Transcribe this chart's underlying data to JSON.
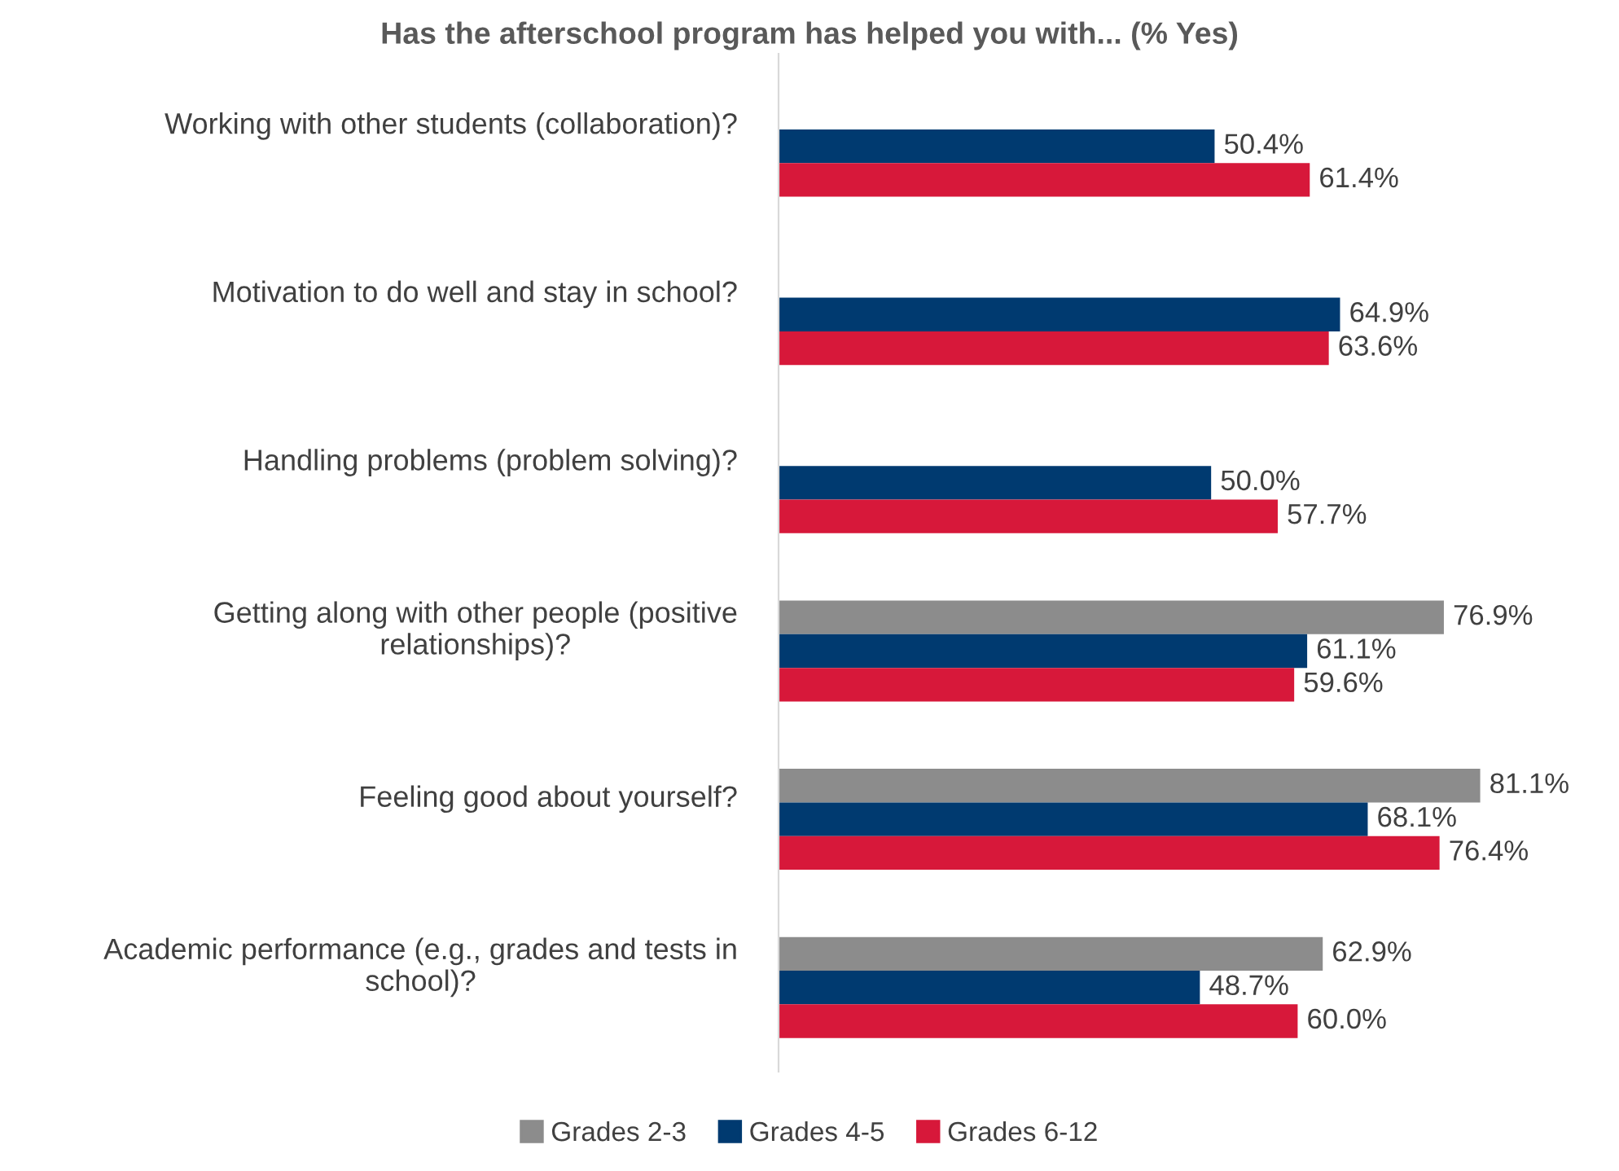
{
  "chart_data": {
    "type": "bar",
    "orientation": "horizontal",
    "title": "Has the afterschool program has helped you with... (% Yes)",
    "categories": [
      "Working with other students (collaboration)?",
      "Motivation to do well and stay in school?",
      "Handling problems (problem solving)?",
      "Getting along with other people (positive relationships)?",
      "Feeling good about yourself?",
      "Academic performance (e.g., grades and tests in school)?"
    ],
    "series": [
      {
        "name": "Grades 2-3",
        "color": "#8c8c8c",
        "values": [
          null,
          null,
          null,
          76.9,
          81.1,
          62.9
        ],
        "value_labels": [
          null,
          null,
          null,
          "76.9%",
          "81.1%",
          "62.9%"
        ]
      },
      {
        "name": "Grades 4-5",
        "color": "#003a70",
        "values": [
          50.4,
          64.9,
          50.0,
          61.1,
          68.1,
          48.7
        ],
        "value_labels": [
          "50.4%",
          "64.9%",
          "50.0%",
          "61.1%",
          "68.1%",
          "48.7%"
        ]
      },
      {
        "name": "Grades 6-12",
        "color": "#d7183a",
        "values": [
          61.4,
          63.6,
          57.7,
          59.6,
          76.4,
          60.0
        ],
        "value_labels": [
          "61.4%",
          "63.6%",
          "57.7%",
          "59.6%",
          "76.4%",
          "60.0%"
        ]
      }
    ],
    "legend": "bottom"
  }
}
